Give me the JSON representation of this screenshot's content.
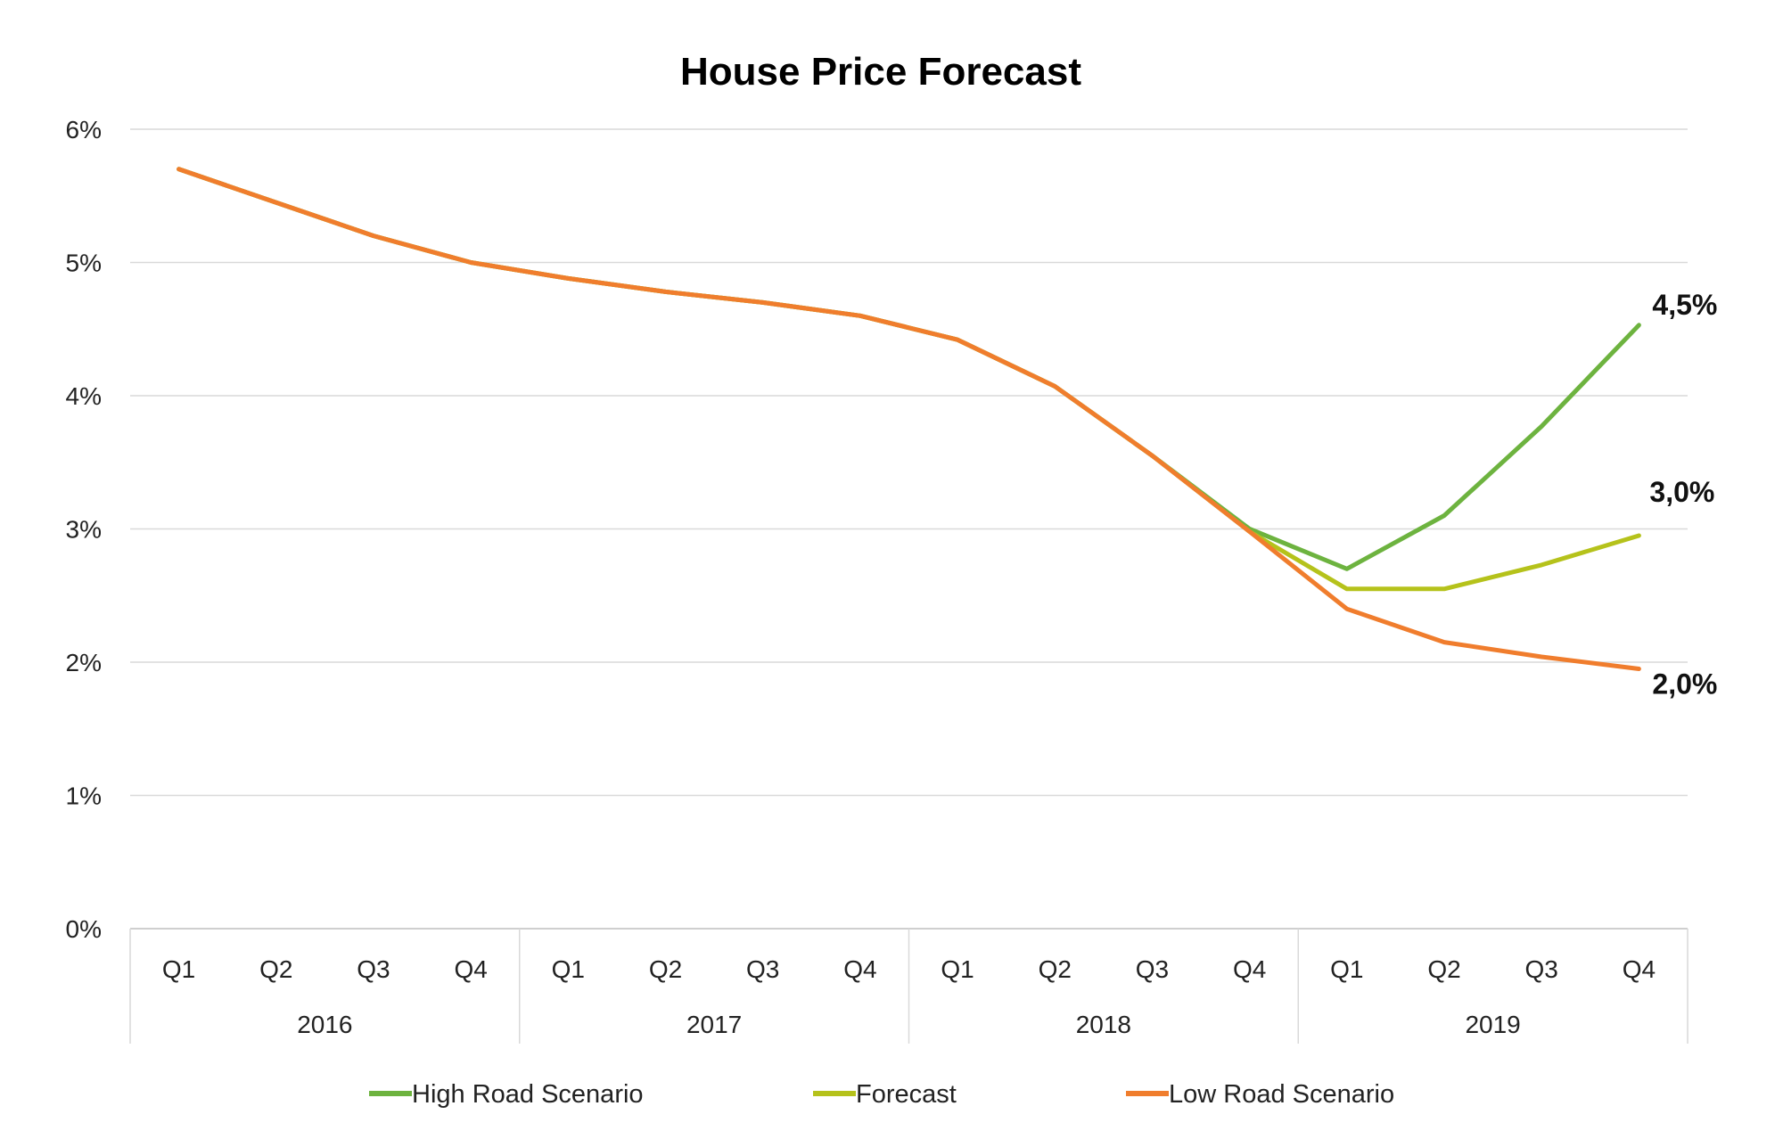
{
  "chart_data": {
    "type": "line",
    "title": "House Price Forecast",
    "xlabel": "",
    "ylabel": "",
    "categories": [
      "Q1",
      "Q2",
      "Q3",
      "Q4",
      "Q1",
      "Q2",
      "Q3",
      "Q4",
      "Q1",
      "Q2",
      "Q3",
      "Q4",
      "Q1",
      "Q2",
      "Q3",
      "Q4"
    ],
    "groups": [
      {
        "label": "2016",
        "span": 4
      },
      {
        "label": "2017",
        "span": 4
      },
      {
        "label": "2018",
        "span": 4
      },
      {
        "label": "2019",
        "span": 4
      }
    ],
    "ylim": [
      0,
      6
    ],
    "yticks": [
      0,
      1,
      2,
      3,
      4,
      5,
      6
    ],
    "ytick_labels": [
      "0%",
      "1%",
      "2%",
      "3%",
      "4%",
      "5%",
      "6%"
    ],
    "grid": true,
    "legend_position": "bottom",
    "series": [
      {
        "name": "High Road Scenario",
        "color": "#6db33f",
        "values": [
          5.7,
          5.45,
          5.2,
          5.0,
          4.88,
          4.78,
          4.7,
          4.6,
          4.42,
          4.07,
          3.55,
          3.0,
          2.7,
          3.1,
          3.77,
          4.53
        ],
        "end_label": "4,5%"
      },
      {
        "name": "Forecast",
        "color": "#b5c21b",
        "values": [
          5.7,
          5.45,
          5.2,
          5.0,
          4.88,
          4.78,
          4.7,
          4.6,
          4.42,
          4.07,
          3.55,
          2.98,
          2.55,
          2.55,
          2.73,
          2.95
        ],
        "end_label": "3,0%"
      },
      {
        "name": "Low Road Scenario",
        "color": "#f07d2d",
        "values": [
          5.7,
          5.45,
          5.2,
          5.0,
          4.88,
          4.78,
          4.7,
          4.6,
          4.42,
          4.07,
          3.55,
          2.98,
          2.4,
          2.15,
          2.04,
          1.95
        ],
        "end_label": "2,0%"
      }
    ]
  }
}
